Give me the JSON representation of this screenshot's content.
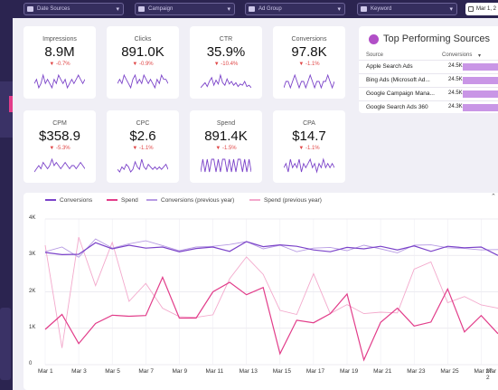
{
  "filters": [
    {
      "label": "Date Sources",
      "icon": "database-icon"
    },
    {
      "label": "Campaign",
      "icon": "folder-icon"
    },
    {
      "label": "Ad Group",
      "icon": "group-icon"
    },
    {
      "label": "Keyword",
      "icon": "search-icon"
    }
  ],
  "date_range": "Mar 1, 2",
  "kpis": [
    {
      "label": "Impressions",
      "value": "8.9M",
      "delta": "▼ -0.7%",
      "spark": [
        5,
        6,
        4,
        5,
        7,
        5,
        6,
        5,
        4,
        6,
        5,
        7,
        6,
        5,
        6,
        4,
        5,
        6,
        5,
        6,
        7,
        6,
        5,
        6
      ]
    },
    {
      "label": "Clicks",
      "value": "891.0K",
      "delta": "▼ -0.9%",
      "spark": [
        5,
        6,
        5,
        7,
        6,
        5,
        4,
        6,
        7,
        5,
        6,
        5,
        7,
        6,
        5,
        6,
        5,
        4,
        6,
        5,
        7,
        6,
        6,
        5
      ]
    },
    {
      "label": "CTR",
      "value": "35.9%",
      "delta": "▼ -10.4%",
      "spark": [
        4,
        6,
        8,
        5,
        9,
        12,
        6,
        10,
        7,
        14,
        8,
        6,
        11,
        7,
        9,
        6,
        8,
        5,
        7,
        6,
        9,
        5,
        6,
        4
      ]
    },
    {
      "label": "Conversions",
      "value": "97.8K",
      "delta": "▼ -1.1%",
      "spark": [
        5,
        6,
        6,
        5,
        6,
        7,
        6,
        5,
        6,
        6,
        5,
        6,
        7,
        6,
        5,
        6,
        6,
        5,
        6,
        6,
        7,
        6,
        5,
        6
      ]
    },
    {
      "label": "CPM",
      "value": "$358.9",
      "delta": "▼ -5.3%",
      "spark": [
        4,
        5,
        6,
        5,
        7,
        6,
        5,
        6,
        8,
        6,
        7,
        6,
        5,
        6,
        7,
        6,
        5,
        6,
        6,
        5,
        6,
        7,
        6,
        5
      ]
    },
    {
      "label": "CPC",
      "value": "$2.6",
      "delta": "▼ -1.1%",
      "spark": [
        5,
        4,
        6,
        5,
        7,
        6,
        4,
        5,
        8,
        6,
        5,
        9,
        6,
        5,
        7,
        6,
        5,
        6,
        5,
        6,
        5,
        6,
        7,
        5
      ]
    },
    {
      "label": "Spend",
      "value": "891.4K",
      "delta": "▼ -1.5%",
      "spark": [
        5,
        6,
        5,
        6,
        5,
        6,
        6,
        5,
        6,
        5,
        6,
        6,
        5,
        6,
        5,
        6,
        5,
        6,
        6,
        5,
        6,
        5,
        6,
        5
      ]
    },
    {
      "label": "CPA",
      "value": "$14.7",
      "delta": "▼ -1.1%",
      "spark": [
        5,
        6,
        4,
        7,
        5,
        6,
        5,
        7,
        4,
        6,
        5,
        6,
        7,
        5,
        6,
        4,
        6,
        5,
        7,
        5,
        6,
        5,
        6,
        5
      ]
    }
  ],
  "top_sources": {
    "title": "Top Performing Sources",
    "icon": "chart-bar-icon",
    "col_source": "Source",
    "col_metric": "Conversions",
    "sort_icon": "sort-down-icon",
    "rows": [
      {
        "source": "Apple Search Ads",
        "value": "24.5K",
        "fraction": 1.0
      },
      {
        "source": "Bing Ads (Microsoft Ad...",
        "value": "24.5K",
        "fraction": 0.99
      },
      {
        "source": "Google Campaign Mana...",
        "value": "24.5K",
        "fraction": 0.99
      },
      {
        "source": "Google Search Ads 360",
        "value": "24.3K",
        "fraction": 0.98
      }
    ]
  },
  "colors": {
    "conversions": "#7b43c9",
    "spend": "#e23d8a",
    "conversions_prev": "#b79be3",
    "spend_prev": "#f3a9cc",
    "bar": "#c996e6"
  },
  "chart_data": {
    "type": "line",
    "x": [
      "Mar 1",
      "Mar 2",
      "Mar 3",
      "Mar 4",
      "Mar 5",
      "Mar 6",
      "Mar 7",
      "Mar 8",
      "Mar 9",
      "Mar 10",
      "Mar 11",
      "Mar 12",
      "Mar 13",
      "Mar 14",
      "Mar 15",
      "Mar 16",
      "Mar 17",
      "Mar 18",
      "Mar 19",
      "Mar 20",
      "Mar 21",
      "Mar 22",
      "Mar 23",
      "Mar 24",
      "Mar 25",
      "Mar 26",
      "Mar 27",
      "Mar 28"
    ],
    "x_ticks": [
      "Mar 1",
      "Mar 3",
      "Mar 5",
      "Mar 7",
      "Mar 9",
      "Mar 11",
      "Mar 13",
      "Mar 15",
      "Mar 17",
      "Mar 19",
      "Mar 21",
      "Mar 23",
      "Mar 25",
      "Mar 27",
      "Mar 2"
    ],
    "y_ticks": [
      "0",
      "1K",
      "2K",
      "3K",
      "4K"
    ],
    "ylim": [
      0,
      4000
    ],
    "legend_position": "top",
    "grid": true,
    "series": [
      {
        "name": "Conversions",
        "values": [
          3080,
          3020,
          3030,
          3350,
          3180,
          3280,
          3200,
          3230,
          3100,
          3190,
          3230,
          3110,
          3380,
          3240,
          3290,
          3250,
          3150,
          3100,
          3220,
          3180,
          3250,
          3150,
          3260,
          3110,
          3250,
          3210,
          3230,
          3000
        ]
      },
      {
        "name": "Spend",
        "values": [
          970,
          1380,
          580,
          1130,
          1360,
          1330,
          1350,
          2400,
          1280,
          1280,
          2000,
          2260,
          1920,
          2120,
          300,
          1220,
          1150,
          1400,
          1940,
          130,
          1160,
          1550,
          1060,
          1170,
          2080,
          900,
          1350,
          850
        ]
      },
      {
        "name": "Conversions (previous year)",
        "values": [
          3100,
          3230,
          2950,
          3450,
          3200,
          3320,
          3400,
          3270,
          3130,
          3230,
          3250,
          3300,
          3380,
          3180,
          3280,
          3100,
          3200,
          3220,
          3130,
          3280,
          3180,
          3070,
          3280,
          3290,
          3210,
          3190,
          3150,
          3160
        ]
      },
      {
        "name": "Spend (previous year)",
        "values": [
          3280,
          460,
          3500,
          2170,
          3360,
          1740,
          2230,
          1550,
          1320,
          1300,
          1370,
          2360,
          2960,
          2480,
          1490,
          1380,
          2500,
          1400,
          1650,
          1400,
          1440,
          1420,
          2620,
          2820,
          1700,
          1870,
          1640,
          1550
        ]
      }
    ]
  }
}
